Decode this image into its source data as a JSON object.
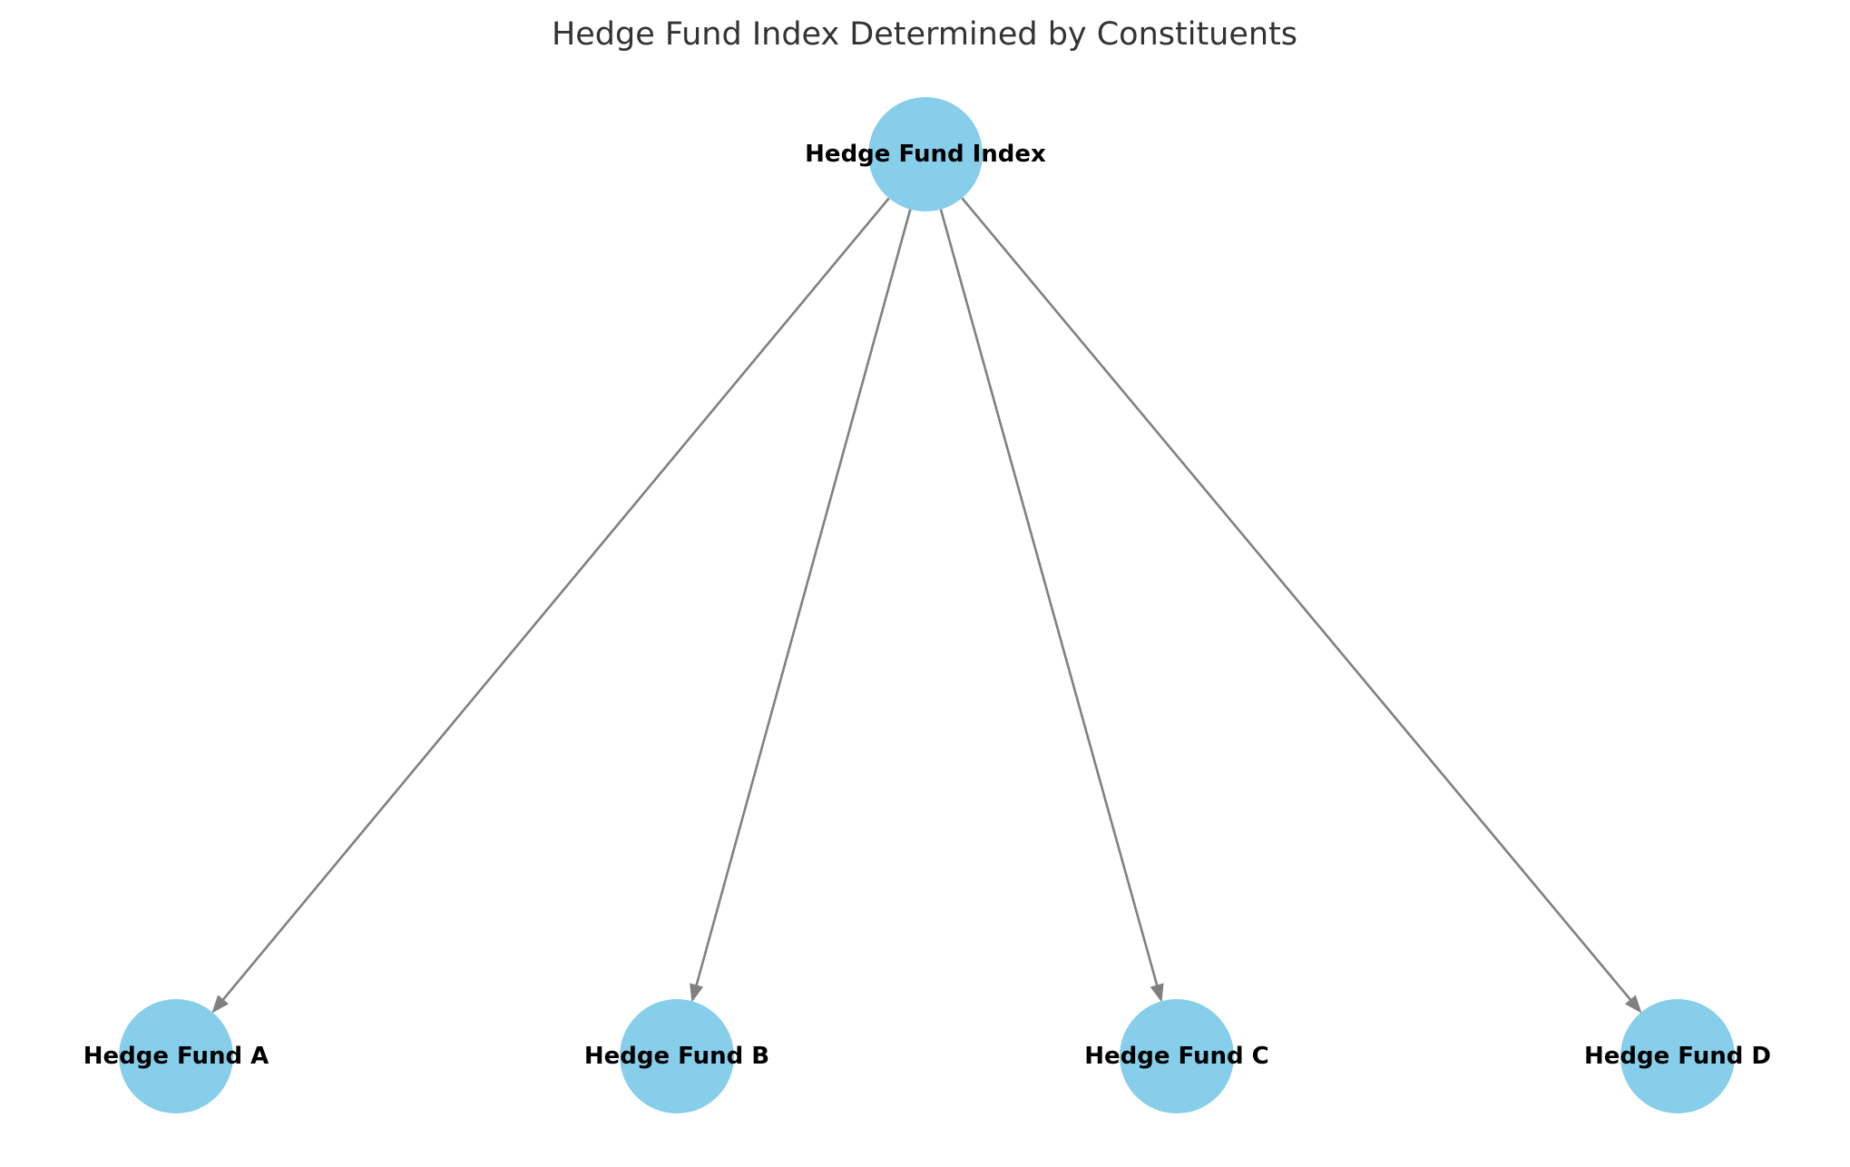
{
  "diagram": {
    "title": "Hedge Fund Index Determined by Constituents",
    "node_color": "#87CEEB",
    "edge_color": "#808080",
    "nodes": [
      {
        "id": "index",
        "label": "Hedge Fund Index"
      },
      {
        "id": "a",
        "label": "Hedge Fund A"
      },
      {
        "id": "b",
        "label": "Hedge Fund B"
      },
      {
        "id": "c",
        "label": "Hedge Fund C"
      },
      {
        "id": "d",
        "label": "Hedge Fund D"
      }
    ],
    "edges": [
      {
        "from": "index",
        "to": "a"
      },
      {
        "from": "index",
        "to": "b"
      },
      {
        "from": "index",
        "to": "c"
      },
      {
        "from": "index",
        "to": "d"
      }
    ]
  }
}
